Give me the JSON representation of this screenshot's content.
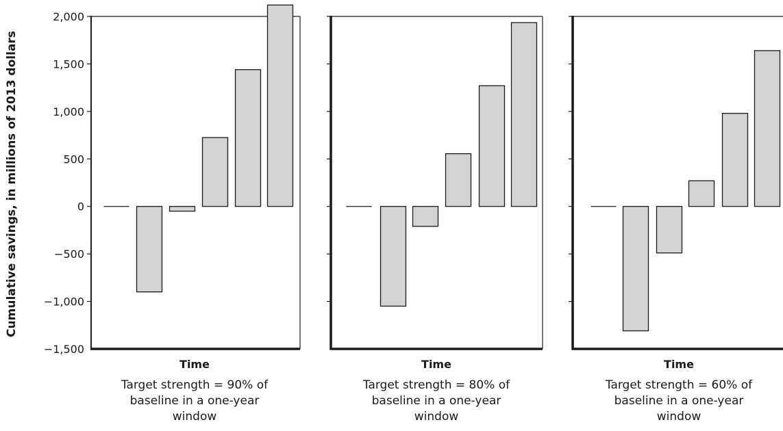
{
  "chart_data": {
    "type": "bar",
    "ylabel": "Cumulative savings, in millions of 2013 dollars",
    "ylim": [
      -1500,
      2000
    ],
    "yticks": [
      2000,
      1500,
      1000,
      500,
      0,
      -500,
      -1000,
      -1500
    ],
    "ytick_labels": [
      "2,000",
      "1,500",
      "1,000",
      "500",
      "0",
      "−500",
      "−1,000",
      "−1,500"
    ],
    "grid": false,
    "panels": [
      {
        "xlabel": "Time",
        "caption": [
          "Target strength = 90% of",
          "baseline in a one-year",
          "window"
        ],
        "values": [
          0,
          -900,
          -50,
          725,
          1440,
          2120
        ]
      },
      {
        "xlabel": "Time",
        "caption": [
          "Target strength = 80% of",
          "baseline in a one-year",
          "window"
        ],
        "values": [
          0,
          -1050,
          -210,
          555,
          1270,
          1935
        ]
      },
      {
        "xlabel": "Time",
        "caption": [
          "Target strength = 60% of",
          "baseline in a one-year",
          "window"
        ],
        "values": [
          0,
          -1310,
          -490,
          270,
          980,
          1640
        ]
      }
    ],
    "colors": {
      "bar_fill": "#d3d3d3",
      "bar_stroke": "#1a1a1a",
      "axis": "#1a1a1a"
    }
  }
}
